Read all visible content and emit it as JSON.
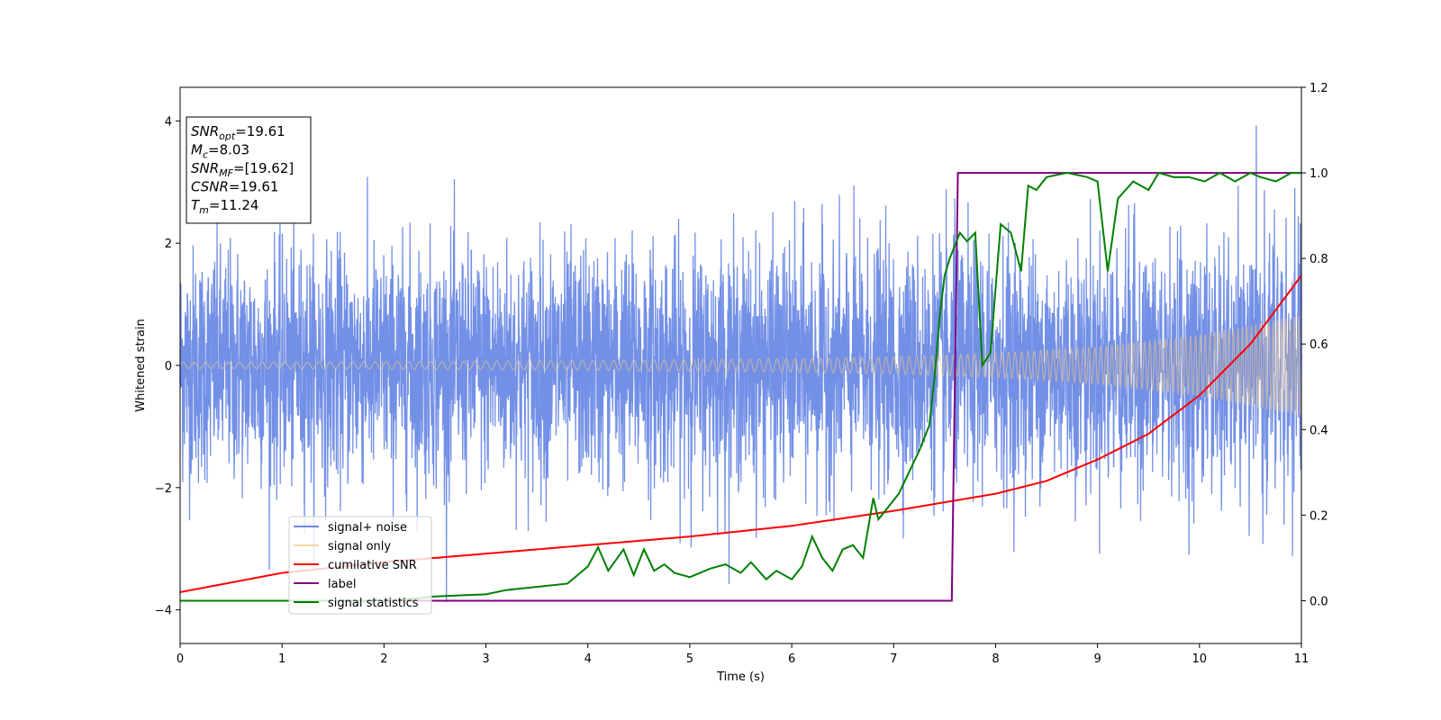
{
  "chart_data": {
    "type": "line",
    "xlabel": "Time (s)",
    "ylabel_left": "Whitened strain",
    "ylabel_right": "",
    "xlim": [
      0,
      11
    ],
    "ylim_left": [
      -4.55,
      4.55
    ],
    "ylim_right": [
      -0.1,
      1.2
    ],
    "x_ticks": [
      0,
      1,
      2,
      3,
      4,
      5,
      6,
      7,
      8,
      9,
      10,
      11
    ],
    "y_ticks_left": [
      -4,
      -2,
      0,
      2,
      4
    ],
    "y_ticks_right": [
      0.0,
      0.2,
      0.4,
      0.6,
      0.8,
      1.0,
      1.2
    ],
    "grid": false,
    "legend_position": "lower-left",
    "annotation": {
      "lines": [
        {
          "main": "SNR",
          "sub": "opt",
          "rest": "=19.61"
        },
        {
          "main": "M",
          "sub": "c",
          "rest": "=8.03"
        },
        {
          "main": "SNR",
          "sub": "MF",
          "rest": "=[19.62]"
        },
        {
          "main": "CSNR",
          "sub": "",
          "rest": "=19.61"
        },
        {
          "main": "T",
          "sub": "m",
          "rest": "=11.24"
        }
      ]
    },
    "series": [
      {
        "name": "signal+ noise",
        "axis": "left",
        "color": "#6b8ae6",
        "description_type": "noise",
        "noise_sigma": 0.95,
        "envelope": {
          "x": [
            0,
            2,
            4,
            6,
            7,
            8,
            9,
            10,
            11
          ],
          "y": [
            0.05,
            0.06,
            0.08,
            0.11,
            0.14,
            0.2,
            0.3,
            0.5,
            0.82
          ]
        }
      },
      {
        "name": "signal only",
        "axis": "left",
        "color": "#f5c87a",
        "description_type": "chirp",
        "envelope": {
          "x": [
            0,
            2,
            4,
            6,
            7,
            8,
            9,
            10,
            11
          ],
          "y": [
            0.05,
            0.06,
            0.08,
            0.11,
            0.14,
            0.2,
            0.3,
            0.5,
            0.82
          ]
        }
      },
      {
        "name": "cumilative SNR",
        "axis": "right",
        "color": "#ff0000",
        "x": [
          0,
          1,
          2,
          3,
          4,
          5,
          6,
          7,
          7.5,
          8,
          8.5,
          9,
          9.5,
          10,
          10.5,
          11
        ],
        "y": [
          0.02,
          0.065,
          0.09,
          0.11,
          0.13,
          0.15,
          0.175,
          0.21,
          0.23,
          0.25,
          0.28,
          0.33,
          0.39,
          0.48,
          0.6,
          0.76
        ]
      },
      {
        "name": "label",
        "axis": "right",
        "color": "#800080",
        "x": [
          0,
          7.57,
          7.63,
          11
        ],
        "y": [
          0.0,
          0.0,
          1.0,
          1.0
        ]
      },
      {
        "name": "signal statistics",
        "axis": "right",
        "color": "#008000",
        "x": [
          0,
          2.0,
          2.3,
          2.5,
          3.0,
          3.2,
          3.4,
          3.6,
          3.8,
          4.0,
          4.1,
          4.2,
          4.35,
          4.45,
          4.55,
          4.65,
          4.75,
          4.85,
          5.0,
          5.2,
          5.35,
          5.5,
          5.6,
          5.75,
          5.85,
          6.0,
          6.1,
          6.2,
          6.3,
          6.4,
          6.5,
          6.6,
          6.7,
          6.8,
          6.85,
          6.95,
          7.05,
          7.15,
          7.25,
          7.35,
          7.4,
          7.45,
          7.5,
          7.55,
          7.6,
          7.65,
          7.72,
          7.8,
          7.87,
          7.95,
          8.05,
          8.15,
          8.25,
          8.32,
          8.4,
          8.5,
          8.7,
          8.9,
          9.0,
          9.1,
          9.2,
          9.35,
          9.5,
          9.6,
          9.75,
          9.9,
          10.05,
          10.2,
          10.35,
          10.5,
          10.6,
          10.75,
          10.9,
          11.0
        ],
        "y": [
          0.0,
          0.0,
          0.005,
          0.01,
          0.015,
          0.025,
          0.03,
          0.035,
          0.04,
          0.08,
          0.125,
          0.07,
          0.12,
          0.06,
          0.12,
          0.07,
          0.085,
          0.065,
          0.055,
          0.075,
          0.085,
          0.065,
          0.09,
          0.05,
          0.07,
          0.05,
          0.08,
          0.15,
          0.1,
          0.07,
          0.12,
          0.13,
          0.1,
          0.24,
          0.19,
          0.22,
          0.25,
          0.3,
          0.35,
          0.41,
          0.52,
          0.66,
          0.76,
          0.8,
          0.83,
          0.86,
          0.84,
          0.86,
          0.55,
          0.58,
          0.88,
          0.86,
          0.77,
          0.97,
          0.96,
          0.99,
          1.0,
          0.99,
          0.98,
          0.77,
          0.94,
          0.98,
          0.96,
          1.0,
          0.99,
          0.99,
          0.98,
          1.0,
          0.98,
          1.0,
          0.99,
          0.98,
          1.0,
          1.0
        ]
      }
    ]
  }
}
